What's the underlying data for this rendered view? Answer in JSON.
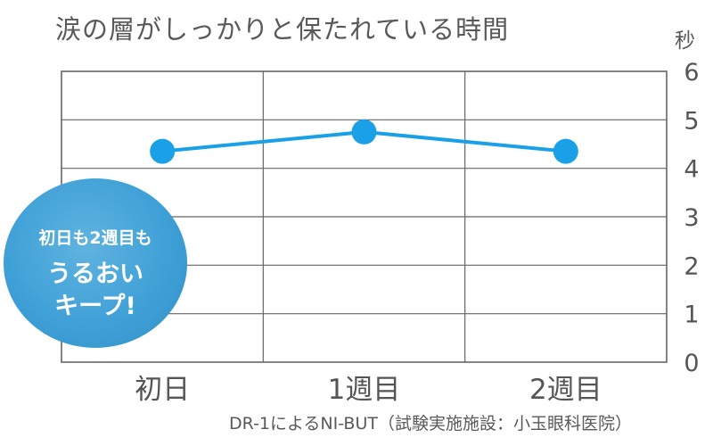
{
  "title": "涙の層がしっかりと保たれている時間",
  "note": "DR-1によるNI-BUT（試験実施施設：小玉眼科医院）",
  "badge": {
    "line1": "初日も2週目も",
    "line2": "うるおい",
    "line3": "キープ!"
  },
  "colors": {
    "line": "#1aa0e6",
    "grid": "#666666",
    "badge": "#3d9fd6"
  },
  "chart_data": {
    "type": "line",
    "title": "涙の層がしっかりと保たれている時間",
    "ylabel": "秒",
    "categories": [
      "初日",
      "1週目",
      "2週目"
    ],
    "values": [
      4.35,
      4.75,
      4.35
    ],
    "ylim": [
      0,
      6
    ],
    "yticks": [
      "0",
      "1",
      "2",
      "3",
      "4",
      "5",
      "6"
    ],
    "grid": true
  }
}
